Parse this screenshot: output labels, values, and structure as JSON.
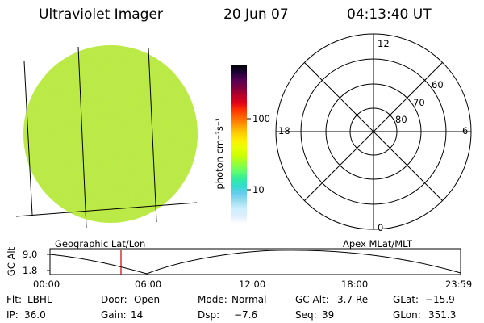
{
  "header": {
    "instrument": "Ultraviolet Imager",
    "date": "20 Jun 07",
    "time": "04:13:40 UT"
  },
  "colorbar": {
    "unit_label": "photon cm⁻²s⁻¹",
    "ticks": [
      "100",
      "10"
    ],
    "colors": [
      "#000000",
      "#1a0033",
      "#550055",
      "#7a0040",
      "#b3002a",
      "#e0001a",
      "#ff3300",
      "#ff6600",
      "#ff9900",
      "#ffcc00",
      "#ffee00",
      "#e6ff00",
      "#ccff00",
      "#99ff33",
      "#66ff66",
      "#33ee99",
      "#33ddcc",
      "#66ccee",
      "#99ddee",
      "#cceeff",
      "#ddeeff",
      "#ffffff"
    ]
  },
  "image_panel": {
    "caption": "Geographic Lat/Lon",
    "disk_color": "#b9e83c"
  },
  "polar_panel": {
    "caption": "Apex MLat/MLT",
    "mlt_labels": {
      "top": "12",
      "bottom": "0",
      "left": "18",
      "right": "6"
    },
    "lat_labels": [
      "60",
      "70",
      "80"
    ]
  },
  "altitude_plot": {
    "ylabel": "GC Alt",
    "yticks": [
      "9.0",
      "1.8"
    ],
    "xticks": [
      "00:00",
      "06:00",
      "12:00",
      "18:00",
      "23:59"
    ],
    "marker_color": "#cc0000"
  },
  "info": {
    "row1": [
      {
        "label": "Flt:",
        "value": "LBHL"
      },
      {
        "label": "Door:",
        "value": "Open"
      },
      {
        "label": "Mode:",
        "value": "Normal"
      },
      {
        "label": "GC Alt:",
        "value": "3.7 Re"
      },
      {
        "label": "GLat:",
        "value": "−15.9"
      }
    ],
    "row2": [
      {
        "label": "IP:",
        "value": "36.0"
      },
      {
        "label": "Gain:",
        "value": "14"
      },
      {
        "label": "Dsp:",
        "value": "−7.6"
      },
      {
        "label": "Seq:",
        "value": "39"
      },
      {
        "label": "GLon:",
        "value": "351.3"
      }
    ]
  }
}
